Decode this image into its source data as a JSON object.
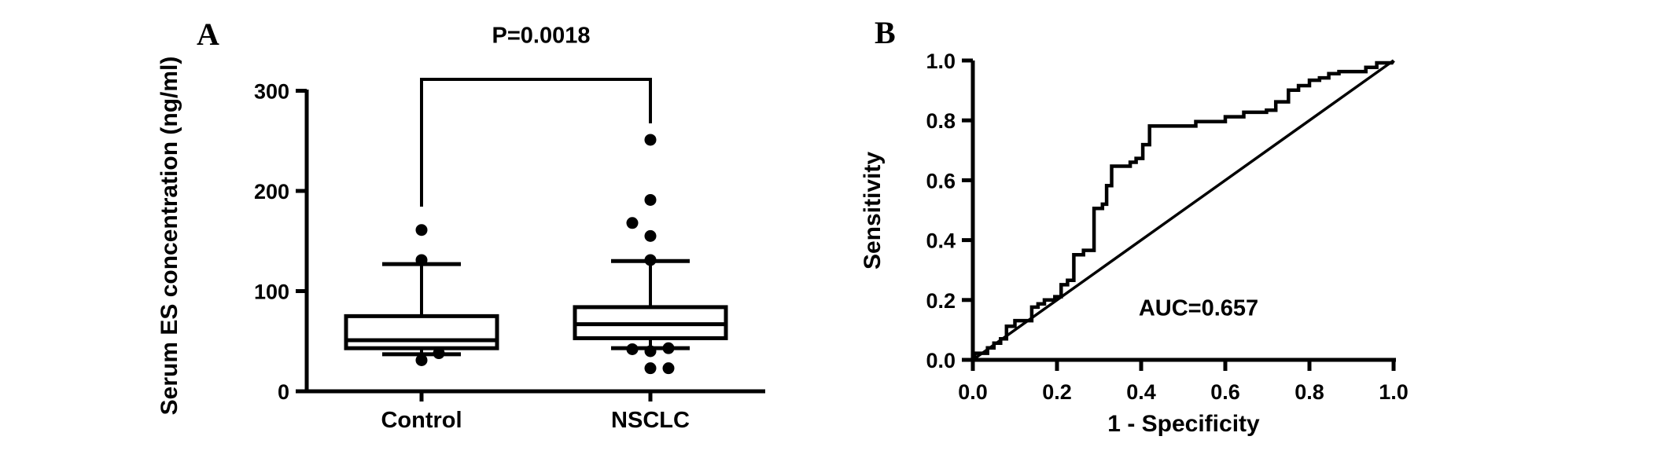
{
  "figure": {
    "panel_a": {
      "letter": "A"
    },
    "panel_b": {
      "letter": "B"
    }
  },
  "chart_data": [
    {
      "type": "box",
      "panel": "A",
      "ylabel": "Serum ES concentration (ng/ml)",
      "ylim": [
        0,
        300
      ],
      "yticks": [
        0,
        100,
        200,
        300
      ],
      "ytick_labels": [
        "0",
        "100",
        "200",
        "300"
      ],
      "grid": false,
      "groups": [
        {
          "label": "Control",
          "q1": 43,
          "median": 51,
          "q3": 75,
          "whisker_low": 37,
          "whisker_high": 127,
          "outliers": [
            {
              "dx": 0,
              "value": 161
            },
            {
              "dx": 0,
              "value": 131
            },
            {
              "dx": 22,
              "value": 38
            },
            {
              "dx": 0,
              "value": 31
            }
          ]
        },
        {
          "label": "NSCLC",
          "q1": 53,
          "median": 67,
          "q3": 84,
          "whisker_low": 43,
          "whisker_high": 130,
          "outliers": [
            {
              "dx": 0,
              "value": 251
            },
            {
              "dx": 0,
              "value": 191
            },
            {
              "dx": -23,
              "value": 168
            },
            {
              "dx": 0,
              "value": 155
            },
            {
              "dx": 0,
              "value": 131
            },
            {
              "dx": -23,
              "value": 42
            },
            {
              "dx": 0,
              "value": 40
            },
            {
              "dx": 23,
              "value": 43
            },
            {
              "dx": 0,
              "value": 23
            },
            {
              "dx": 23,
              "value": 23
            }
          ]
        }
      ],
      "significance": {
        "label": "P=0.0018",
        "between": [
          "Control",
          "NSCLC"
        ]
      }
    },
    {
      "type": "line",
      "subtype": "roc",
      "panel": "B",
      "xlabel": "1 - Specificity",
      "ylabel": "Sensitivity",
      "xlim": [
        0,
        1
      ],
      "ylim": [
        0,
        1
      ],
      "xticks": [
        0,
        0.2,
        0.4,
        0.6,
        0.8,
        1.0
      ],
      "yticks": [
        0,
        0.2,
        0.4,
        0.6,
        0.8,
        1.0
      ],
      "xtick_labels": [
        "0.0",
        "0.2",
        "0.4",
        "0.6",
        "0.8",
        "1.0"
      ],
      "ytick_labels": [
        "0.0",
        "0.2",
        "0.4",
        "0.6",
        "0.8",
        "1.0"
      ],
      "annotation": {
        "label": "AUC=0.657"
      },
      "reference_line": [
        [
          0,
          0
        ],
        [
          1,
          1
        ]
      ],
      "roc_points": [
        [
          0,
          0
        ],
        [
          0.006,
          0.022
        ],
        [
          0.035,
          0.022
        ],
        [
          0.035,
          0.04
        ],
        [
          0.05,
          0.04
        ],
        [
          0.05,
          0.056
        ],
        [
          0.066,
          0.056
        ],
        [
          0.066,
          0.07
        ],
        [
          0.08,
          0.07
        ],
        [
          0.08,
          0.112
        ],
        [
          0.1,
          0.112
        ],
        [
          0.1,
          0.131
        ],
        [
          0.14,
          0.131
        ],
        [
          0.14,
          0.176
        ],
        [
          0.155,
          0.176
        ],
        [
          0.155,
          0.187
        ],
        [
          0.17,
          0.187
        ],
        [
          0.17,
          0.2
        ],
        [
          0.195,
          0.2
        ],
        [
          0.195,
          0.211
        ],
        [
          0.21,
          0.211
        ],
        [
          0.21,
          0.251
        ],
        [
          0.225,
          0.251
        ],
        [
          0.225,
          0.266
        ],
        [
          0.24,
          0.266
        ],
        [
          0.24,
          0.351
        ],
        [
          0.263,
          0.351
        ],
        [
          0.263,
          0.366
        ],
        [
          0.288,
          0.366
        ],
        [
          0.288,
          0.506
        ],
        [
          0.308,
          0.506
        ],
        [
          0.308,
          0.52
        ],
        [
          0.318,
          0.52
        ],
        [
          0.318,
          0.582
        ],
        [
          0.33,
          0.582
        ],
        [
          0.33,
          0.647
        ],
        [
          0.374,
          0.647
        ],
        [
          0.374,
          0.66
        ],
        [
          0.388,
          0.66
        ],
        [
          0.388,
          0.673
        ],
        [
          0.404,
          0.673
        ],
        [
          0.404,
          0.719
        ],
        [
          0.42,
          0.719
        ],
        [
          0.42,
          0.781
        ],
        [
          0.53,
          0.781
        ],
        [
          0.53,
          0.796
        ],
        [
          0.6,
          0.796
        ],
        [
          0.6,
          0.812
        ],
        [
          0.644,
          0.812
        ],
        [
          0.644,
          0.827
        ],
        [
          0.698,
          0.827
        ],
        [
          0.698,
          0.834
        ],
        [
          0.72,
          0.834
        ],
        [
          0.72,
          0.862
        ],
        [
          0.75,
          0.862
        ],
        [
          0.75,
          0.901
        ],
        [
          0.774,
          0.901
        ],
        [
          0.774,
          0.916
        ],
        [
          0.8,
          0.916
        ],
        [
          0.8,
          0.934
        ],
        [
          0.824,
          0.934
        ],
        [
          0.824,
          0.942
        ],
        [
          0.846,
          0.942
        ],
        [
          0.846,
          0.956
        ],
        [
          0.87,
          0.956
        ],
        [
          0.87,
          0.963
        ],
        [
          0.934,
          0.963
        ],
        [
          0.934,
          0.977
        ],
        [
          0.96,
          0.977
        ],
        [
          0.96,
          0.992
        ],
        [
          0.996,
          0.992
        ],
        [
          1,
          1
        ]
      ]
    }
  ]
}
